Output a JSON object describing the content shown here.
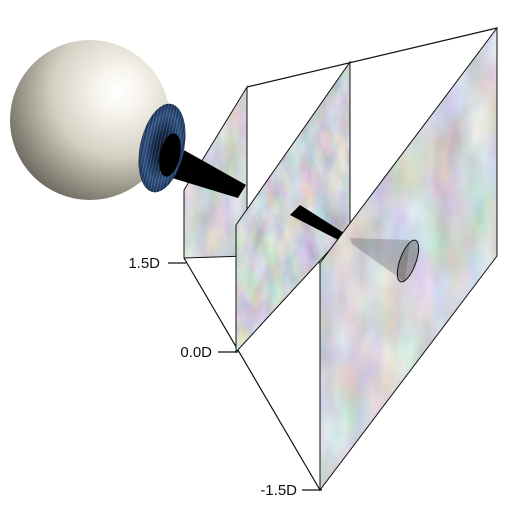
{
  "diagram": {
    "depth_planes": [
      {
        "label": "1.5D"
      },
      {
        "label": "0.0D"
      },
      {
        "label": "-1.5D"
      }
    ]
  },
  "colors": {
    "eyeball_highlight": "#ffffff",
    "eyeball_mid": "#e2dfd3",
    "eyeball_shadow": "#6f6b60",
    "iris": "#1b3357",
    "frame_line": "#111111",
    "ray_cone": "#000000"
  }
}
